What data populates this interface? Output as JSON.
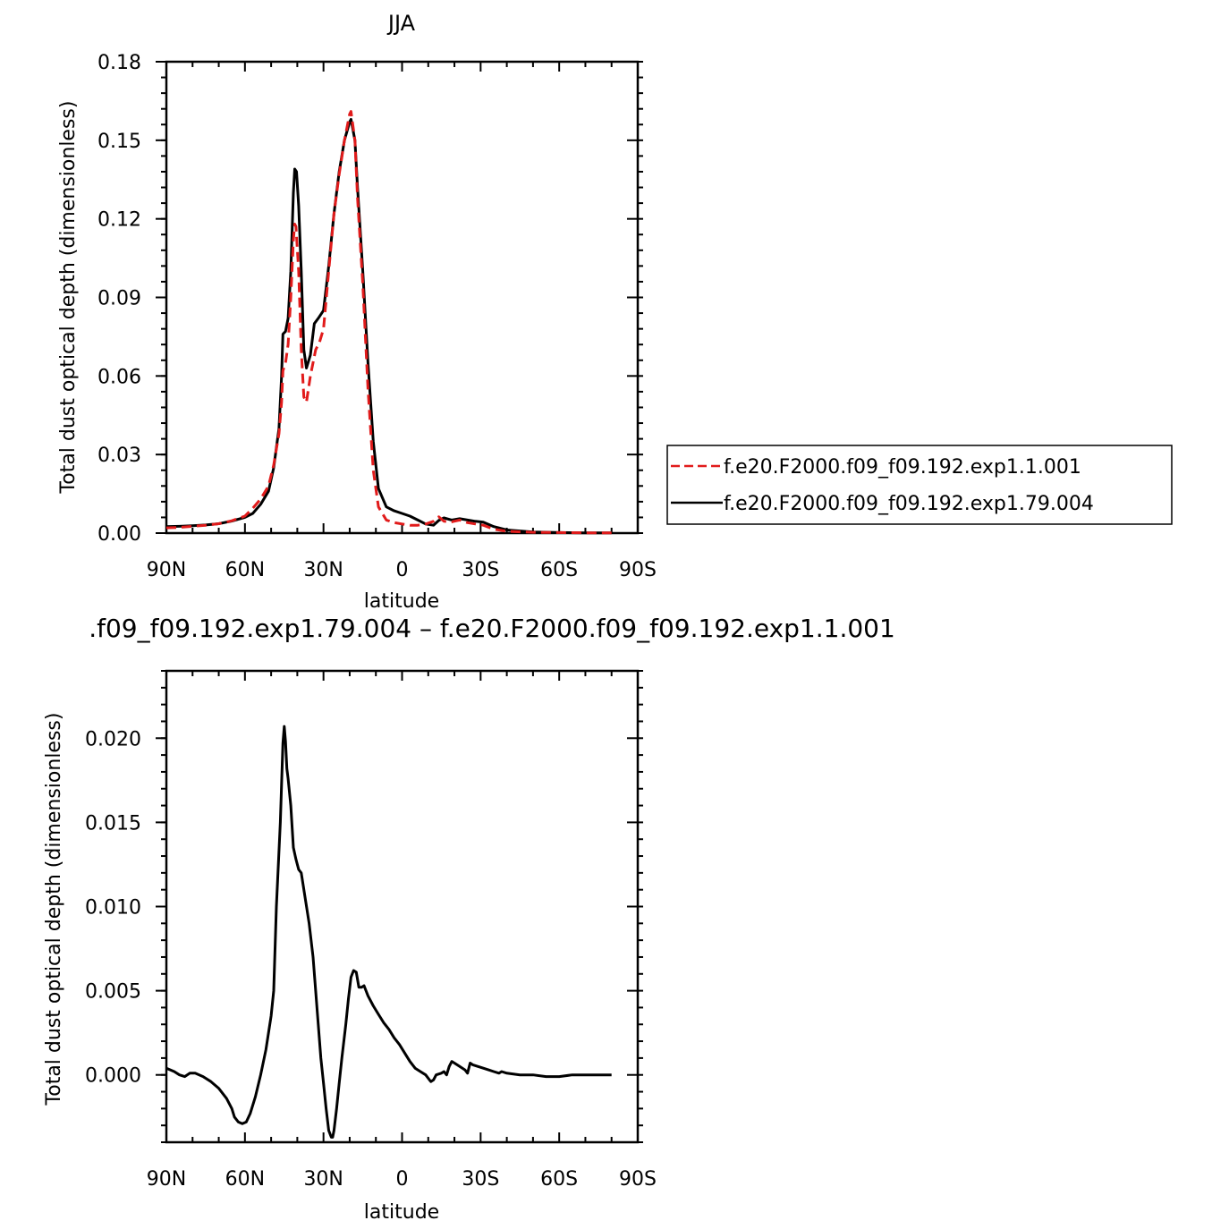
{
  "chart_data": [
    {
      "type": "line",
      "title": "JJA",
      "xlabel": "latitude",
      "ylabel": "Total dust optical depth (dimensionless)",
      "xlim": [
        90,
        -90
      ],
      "ylim": [
        0,
        0.18
      ],
      "xticks": [
        {
          "value": 90,
          "label": "90N"
        },
        {
          "value": 60,
          "label": "60N"
        },
        {
          "value": 30,
          "label": "30N"
        },
        {
          "value": 0,
          "label": "0"
        },
        {
          "value": -30,
          "label": "30S"
        },
        {
          "value": -60,
          "label": "60S"
        },
        {
          "value": -90,
          "label": "90S"
        }
      ],
      "yticks": [
        {
          "value": 0,
          "label": "0.00"
        },
        {
          "value": 0.03,
          "label": "0.03"
        },
        {
          "value": 0.06,
          "label": "0.06"
        },
        {
          "value": 0.09,
          "label": "0.09"
        },
        {
          "value": 0.12,
          "label": "0.12"
        },
        {
          "value": 0.15,
          "label": "0.15"
        },
        {
          "value": 0.18,
          "label": "0.18"
        }
      ],
      "legend_position": "right",
      "series": [
        {
          "name": "f.e20.F2000.f09_f09.192.exp1.1.001",
          "color": "#e11b1b",
          "dash": "dashed",
          "points": [
            [
              90,
              0.002
            ],
            [
              85,
              0.0022
            ],
            [
              80,
              0.0026
            ],
            [
              75,
              0.003
            ],
            [
              70,
              0.0036
            ],
            [
              65,
              0.0047
            ],
            [
              60,
              0.0065
            ],
            [
              57,
              0.0095
            ],
            [
              54,
              0.013
            ],
            [
              51,
              0.018
            ],
            [
              49,
              0.026
            ],
            [
              47,
              0.038
            ],
            [
              46,
              0.05
            ],
            [
              45.5,
              0.062
            ],
            [
              44.5,
              0.065
            ],
            [
              43.5,
              0.072
            ],
            [
              42.5,
              0.09
            ],
            [
              41.5,
              0.112
            ],
            [
              41,
              0.118
            ],
            [
              40.5,
              0.117
            ],
            [
              39.5,
              0.1
            ],
            [
              38.5,
              0.07
            ],
            [
              37.5,
              0.052
            ],
            [
              36.5,
              0.05
            ],
            [
              35,
              0.06
            ],
            [
              33,
              0.07
            ],
            [
              31.5,
              0.073
            ],
            [
              30,
              0.078
            ],
            [
              28,
              0.1
            ],
            [
              26,
              0.122
            ],
            [
              24,
              0.137
            ],
            [
              22,
              0.15
            ],
            [
              20,
              0.16
            ],
            [
              19.5,
              0.161
            ],
            [
              18,
              0.15
            ],
            [
              17,
              0.128
            ],
            [
              15,
              0.095
            ],
            [
              13,
              0.055
            ],
            [
              11,
              0.024
            ],
            [
              9,
              0.01
            ],
            [
              6,
              0.005
            ],
            [
              3,
              0.004
            ],
            [
              0,
              0.0035
            ],
            [
              -3,
              0.003
            ],
            [
              -6,
              0.003
            ],
            [
              -9,
              0.0035
            ],
            [
              -12,
              0.0045
            ],
            [
              -14,
              0.0062
            ],
            [
              -16,
              0.0045
            ],
            [
              -19,
              0.0043
            ],
            [
              -22,
              0.005
            ],
            [
              -25,
              0.004
            ],
            [
              -28,
              0.0035
            ],
            [
              -31,
              0.003
            ],
            [
              -35,
              0.0015
            ],
            [
              -40,
              0.0007
            ],
            [
              -50,
              0.0003
            ],
            [
              -60,
              0.0002
            ],
            [
              -70,
              0.0001
            ],
            [
              -80,
              0.0001
            ]
          ]
        },
        {
          "name": "f.e20.F2000.f09_f09.192.exp1.79.004",
          "color": "#000000",
          "dash": "solid",
          "points": [
            [
              90,
              0.0025
            ],
            [
              85,
              0.0026
            ],
            [
              80,
              0.0028
            ],
            [
              75,
              0.0031
            ],
            [
              70,
              0.0036
            ],
            [
              65,
              0.0046
            ],
            [
              60,
              0.006
            ],
            [
              57,
              0.0075
            ],
            [
              54,
              0.011
            ],
            [
              51,
              0.016
            ],
            [
              49,
              0.025
            ],
            [
              47,
              0.04
            ],
            [
              46,
              0.06
            ],
            [
              45.5,
              0.076
            ],
            [
              44.5,
              0.077
            ],
            [
              43.5,
              0.082
            ],
            [
              42.5,
              0.1
            ],
            [
              41.5,
              0.13
            ],
            [
              41,
              0.139
            ],
            [
              40.3,
              0.138
            ],
            [
              39.5,
              0.125
            ],
            [
              38.5,
              0.1
            ],
            [
              37.5,
              0.07
            ],
            [
              36.5,
              0.063
            ],
            [
              35,
              0.068
            ],
            [
              33.5,
              0.08
            ],
            [
              32,
              0.082
            ],
            [
              30,
              0.085
            ],
            [
              28,
              0.102
            ],
            [
              26,
              0.122
            ],
            [
              24,
              0.138
            ],
            [
              22,
              0.15
            ],
            [
              20,
              0.157
            ],
            [
              19.5,
              0.158
            ],
            [
              18,
              0.15
            ],
            [
              17,
              0.132
            ],
            [
              15,
              0.1
            ],
            [
              13,
              0.065
            ],
            [
              11,
              0.035
            ],
            [
              9,
              0.017
            ],
            [
              6,
              0.01
            ],
            [
              3,
              0.0085
            ],
            [
              0,
              0.0075
            ],
            [
              -3,
              0.0065
            ],
            [
              -6,
              0.005
            ],
            [
              -9,
              0.0035
            ],
            [
              -12,
              0.003
            ],
            [
              -14,
              0.0048
            ],
            [
              -16,
              0.0058
            ],
            [
              -19,
              0.005
            ],
            [
              -22,
              0.0055
            ],
            [
              -25,
              0.005
            ],
            [
              -28,
              0.0045
            ],
            [
              -31,
              0.0042
            ],
            [
              -35,
              0.0025
            ],
            [
              -40,
              0.0012
            ],
            [
              -50,
              0.0004
            ],
            [
              -60,
              0.0002
            ],
            [
              -70,
              0.0001
            ],
            [
              -80,
              0.0001
            ]
          ]
        }
      ]
    },
    {
      "type": "line",
      "title": ".f09_f09.192.exp1.79.004 – f.e20.F2000.f09_f09.192.exp1.1.001",
      "xlabel": "latitude",
      "ylabel": "Total dust optical depth (dimensionless)",
      "xlim": [
        90,
        -90
      ],
      "ylim": [
        -0.004,
        0.024
      ],
      "xticks": [
        {
          "value": 90,
          "label": "90N"
        },
        {
          "value": 60,
          "label": "60N"
        },
        {
          "value": 30,
          "label": "30N"
        },
        {
          "value": 0,
          "label": "0"
        },
        {
          "value": -30,
          "label": "30S"
        },
        {
          "value": -60,
          "label": "60S"
        },
        {
          "value": -90,
          "label": "90S"
        }
      ],
      "yticks": [
        {
          "value": 0,
          "label": "0.000"
        },
        {
          "value": 0.005,
          "label": "0.005"
        },
        {
          "value": 0.01,
          "label": "0.010"
        },
        {
          "value": 0.015,
          "label": "0.015"
        },
        {
          "value": 0.02,
          "label": "0.020"
        }
      ],
      "series": [
        {
          "color": "#000000",
          "dash": "solid",
          "points": [
            [
              90,
              0.0004
            ],
            [
              87,
              0.0002
            ],
            [
              85,
              0.0
            ],
            [
              83,
              -0.0001
            ],
            [
              81,
              0.0001
            ],
            [
              79,
              0.0001
            ],
            [
              76,
              -0.0001
            ],
            [
              73,
              -0.0004
            ],
            [
              70,
              -0.0008
            ],
            [
              67,
              -0.0014
            ],
            [
              65,
              -0.002
            ],
            [
              64,
              -0.0025
            ],
            [
              62.5,
              -0.0028
            ],
            [
              61,
              -0.0029
            ],
            [
              59.5,
              -0.0028
            ],
            [
              58,
              -0.0023
            ],
            [
              56,
              -0.0013
            ],
            [
              54,
              0.0
            ],
            [
              52,
              0.0015
            ],
            [
              50,
              0.0035
            ],
            [
              49,
              0.005
            ],
            [
              48,
              0.01
            ],
            [
              46.5,
              0.015
            ],
            [
              45.5,
              0.0197
            ],
            [
              45,
              0.0207
            ],
            [
              44.5,
              0.0198
            ],
            [
              44,
              0.0182
            ],
            [
              43.5,
              0.0176
            ],
            [
              42.5,
              0.016
            ],
            [
              41.5,
              0.0135
            ],
            [
              40.5,
              0.0128
            ],
            [
              39.5,
              0.0122
            ],
            [
              38.5,
              0.012
            ],
            [
              37,
              0.0105
            ],
            [
              35.5,
              0.009
            ],
            [
              34,
              0.007
            ],
            [
              33,
              0.005
            ],
            [
              32,
              0.003
            ],
            [
              31,
              0.001
            ],
            [
              30,
              -0.0005
            ],
            [
              29,
              -0.002
            ],
            [
              28,
              -0.0033
            ],
            [
              27,
              -0.0037
            ],
            [
              26.5,
              -0.0037
            ],
            [
              26,
              -0.0033
            ],
            [
              25,
              -0.002
            ],
            [
              24,
              -0.0005
            ],
            [
              23,
              0.001
            ],
            [
              21.5,
              0.003
            ],
            [
              20.5,
              0.0045
            ],
            [
              19.5,
              0.0058
            ],
            [
              18.5,
              0.0062
            ],
            [
              17.5,
              0.0061
            ],
            [
              16.5,
              0.0052
            ],
            [
              15.5,
              0.0052
            ],
            [
              14.5,
              0.0053
            ],
            [
              13,
              0.0047
            ],
            [
              11,
              0.0041
            ],
            [
              9,
              0.0036
            ],
            [
              7,
              0.0031
            ],
            [
              5,
              0.0027
            ],
            [
              3,
              0.0022
            ],
            [
              1,
              0.0018
            ],
            [
              -1,
              0.0013
            ],
            [
              -3,
              0.0008
            ],
            [
              -5,
              0.0004
            ],
            [
              -7,
              0.0002
            ],
            [
              -9,
              0.0
            ],
            [
              -10.5,
              -0.0003
            ],
            [
              -11,
              -0.0004
            ],
            [
              -12,
              -0.0003
            ],
            [
              -13,
              0.0
            ],
            [
              -15,
              0.0001
            ],
            [
              -16,
              0.0002
            ],
            [
              -17,
              0.0
            ],
            [
              -18,
              0.0005
            ],
            [
              -19,
              0.0008
            ],
            [
              -20,
              0.0007
            ],
            [
              -22,
              0.0005
            ],
            [
              -24,
              0.0003
            ],
            [
              -25,
              0.0001
            ],
            [
              -26,
              0.0007
            ],
            [
              -27,
              0.0006
            ],
            [
              -29,
              0.0005
            ],
            [
              -31,
              0.0004
            ],
            [
              -33,
              0.0003
            ],
            [
              -35,
              0.0002
            ],
            [
              -37,
              0.0001
            ],
            [
              -38,
              0.0002
            ],
            [
              -40,
              0.0001
            ],
            [
              -45,
              0.0
            ],
            [
              -50,
              0.0
            ],
            [
              -55,
              -0.0001
            ],
            [
              -60,
              -0.0001
            ],
            [
              -65,
              0.0
            ],
            [
              -70,
              0.0
            ],
            [
              -80,
              0.0
            ]
          ]
        }
      ]
    }
  ]
}
